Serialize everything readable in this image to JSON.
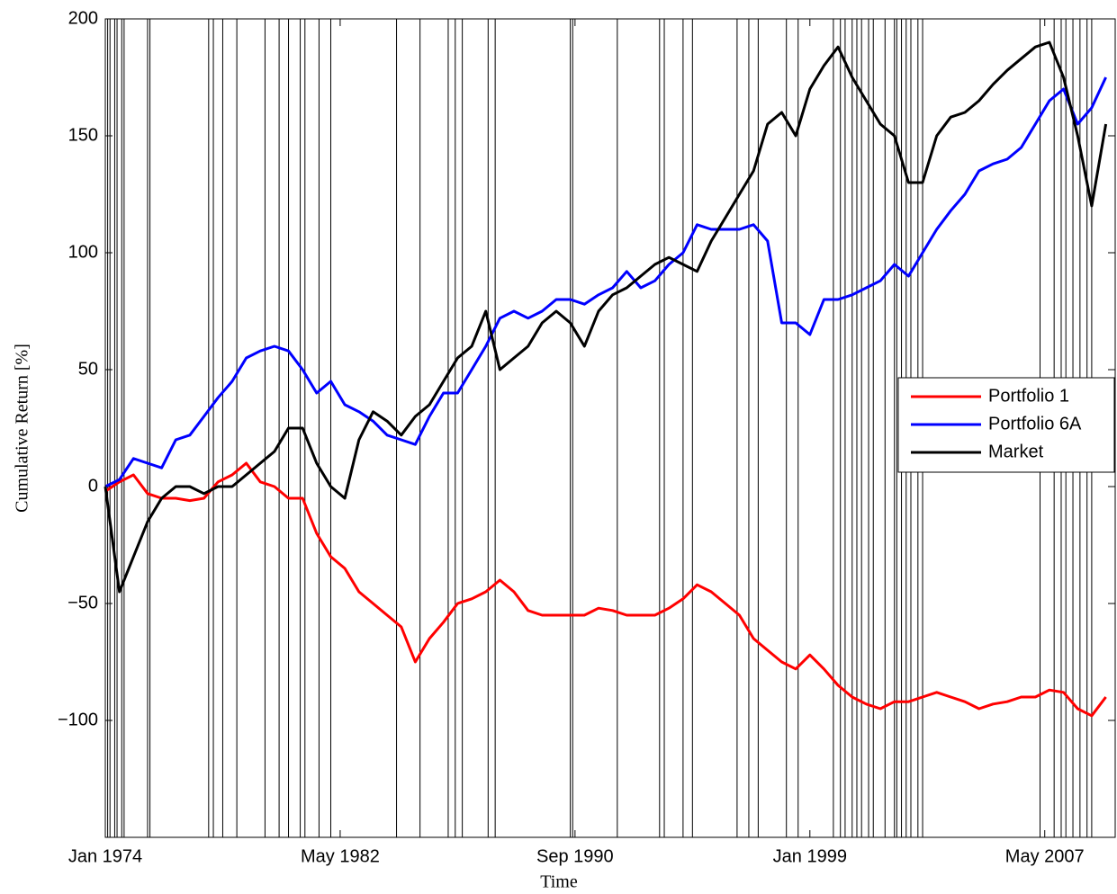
{
  "chart_data": {
    "type": "line",
    "xlabel": "Time",
    "ylabel": "Cumulative Return [%]",
    "x": [
      "1974-01",
      "1974-07",
      "1975-01",
      "1975-07",
      "1976-01",
      "1976-07",
      "1977-01",
      "1977-07",
      "1978-01",
      "1978-07",
      "1979-01",
      "1979-07",
      "1980-01",
      "1980-07",
      "1981-01",
      "1981-07",
      "1982-01",
      "1982-07",
      "1983-01",
      "1983-07",
      "1984-01",
      "1984-07",
      "1985-01",
      "1985-07",
      "1986-01",
      "1986-07",
      "1987-01",
      "1987-07",
      "1988-01",
      "1988-07",
      "1989-01",
      "1989-07",
      "1990-01",
      "1990-07",
      "1991-01",
      "1991-07",
      "1992-01",
      "1992-07",
      "1993-01",
      "1993-07",
      "1994-01",
      "1994-07",
      "1995-01",
      "1995-07",
      "1996-01",
      "1996-07",
      "1997-01",
      "1997-07",
      "1998-01",
      "1998-07",
      "1999-01",
      "1999-07",
      "2000-01",
      "2000-07",
      "2001-01",
      "2001-07",
      "2002-01",
      "2002-07",
      "2003-01",
      "2003-07",
      "2004-01",
      "2004-07",
      "2005-01",
      "2005-07",
      "2006-01",
      "2006-07",
      "2007-01",
      "2007-07",
      "2008-01",
      "2008-07",
      "2009-01",
      "2009-07"
    ],
    "series": [
      {
        "name": "Portfolio 1",
        "color": "#ff0000",
        "values": [
          -2,
          2,
          5,
          -3,
          -5,
          -5,
          -6,
          -5,
          2,
          5,
          10,
          2,
          0,
          -5,
          -5,
          -20,
          -30,
          -35,
          -45,
          -50,
          -55,
          -60,
          -75,
          -65,
          -58,
          -50,
          -48,
          -45,
          -40,
          -45,
          -53,
          -55,
          -55,
          -55,
          -55,
          -52,
          -53,
          -55,
          -55,
          -55,
          -52,
          -48,
          -42,
          -45,
          -50,
          -55,
          -65,
          -70,
          -75,
          -78,
          -72,
          -78,
          -85,
          -90,
          -93,
          -95,
          -92,
          -92,
          -90,
          -88,
          -90,
          -92,
          -95,
          -93,
          -92,
          -90,
          -90,
          -87,
          -88,
          -95,
          -98,
          -90
        ]
      },
      {
        "name": "Portfolio 6A",
        "color": "#0000ff",
        "values": [
          0,
          3,
          12,
          10,
          8,
          20,
          22,
          30,
          38,
          45,
          55,
          58,
          60,
          58,
          50,
          40,
          45,
          35,
          32,
          28,
          22,
          20,
          18,
          30,
          40,
          40,
          50,
          60,
          72,
          75,
          72,
          75,
          80,
          80,
          78,
          82,
          85,
          92,
          85,
          88,
          95,
          100,
          112,
          110,
          110,
          110,
          112,
          105,
          70,
          70,
          65,
          80,
          80,
          82,
          85,
          88,
          95,
          90,
          100,
          110,
          118,
          125,
          135,
          138,
          140,
          145,
          155,
          165,
          170,
          155,
          162,
          175
        ]
      },
      {
        "name": "Market",
        "color": "#000000",
        "values": [
          0,
          -45,
          -30,
          -15,
          -5,
          0,
          0,
          -3,
          0,
          0,
          5,
          10,
          15,
          25,
          25,
          10,
          0,
          -5,
          20,
          32,
          28,
          22,
          30,
          35,
          45,
          55,
          60,
          75,
          50,
          55,
          60,
          70,
          75,
          70,
          60,
          75,
          82,
          85,
          90,
          95,
          98,
          95,
          92,
          105,
          115,
          125,
          135,
          155,
          160,
          150,
          170,
          180,
          188,
          175,
          165,
          155,
          150,
          130,
          130,
          150,
          158,
          160,
          165,
          172,
          178,
          183,
          188,
          190,
          175,
          150,
          120,
          155
        ]
      }
    ],
    "vlines": [
      "1974-02",
      "1974-03",
      "1974-05",
      "1974-06",
      "1974-08",
      "1974-09",
      "1975-07",
      "1975-08",
      "1977-09",
      "1977-11",
      "1978-03",
      "1978-09",
      "1979-09",
      "1980-03",
      "1980-07",
      "1980-12",
      "1981-02",
      "1981-08",
      "1982-01",
      "1984-05",
      "1985-03",
      "1986-03",
      "1986-06",
      "1986-09",
      "1987-08",
      "1987-11",
      "1990-07",
      "1990-08",
      "1992-03",
      "1993-09",
      "1993-11",
      "1994-07",
      "1994-11",
      "1996-06",
      "1996-11",
      "1997-03",
      "1998-03",
      "1998-08",
      "1999-11",
      "2000-02",
      "2000-04",
      "2000-07",
      "2000-09",
      "2000-11",
      "2001-02",
      "2001-04",
      "2001-09",
      "2002-01",
      "2002-02",
      "2002-04",
      "2002-06",
      "2002-08",
      "2002-11",
      "2003-01",
      "2007-03",
      "2007-09",
      "2007-12",
      "2008-02",
      "2008-05",
      "2008-08",
      "2008-11",
      "2009-01"
    ],
    "xlim": [
      "1974-01",
      "2009-11"
    ],
    "xticks": [
      {
        "value": "1974-01",
        "label": "Jan 1974"
      },
      {
        "value": "1982-05",
        "label": "May 1982"
      },
      {
        "value": "1990-09",
        "label": "Sep 1990"
      },
      {
        "value": "1999-01",
        "label": "Jan 1999"
      },
      {
        "value": "2007-05",
        "label": "May 2007"
      }
    ],
    "ylim": [
      -150,
      200
    ],
    "yticks": [
      {
        "value": -100,
        "label": "−100"
      },
      {
        "value": -50,
        "label": "−50"
      },
      0,
      50,
      100,
      150,
      200
    ],
    "legend": "right",
    "grid": false
  }
}
